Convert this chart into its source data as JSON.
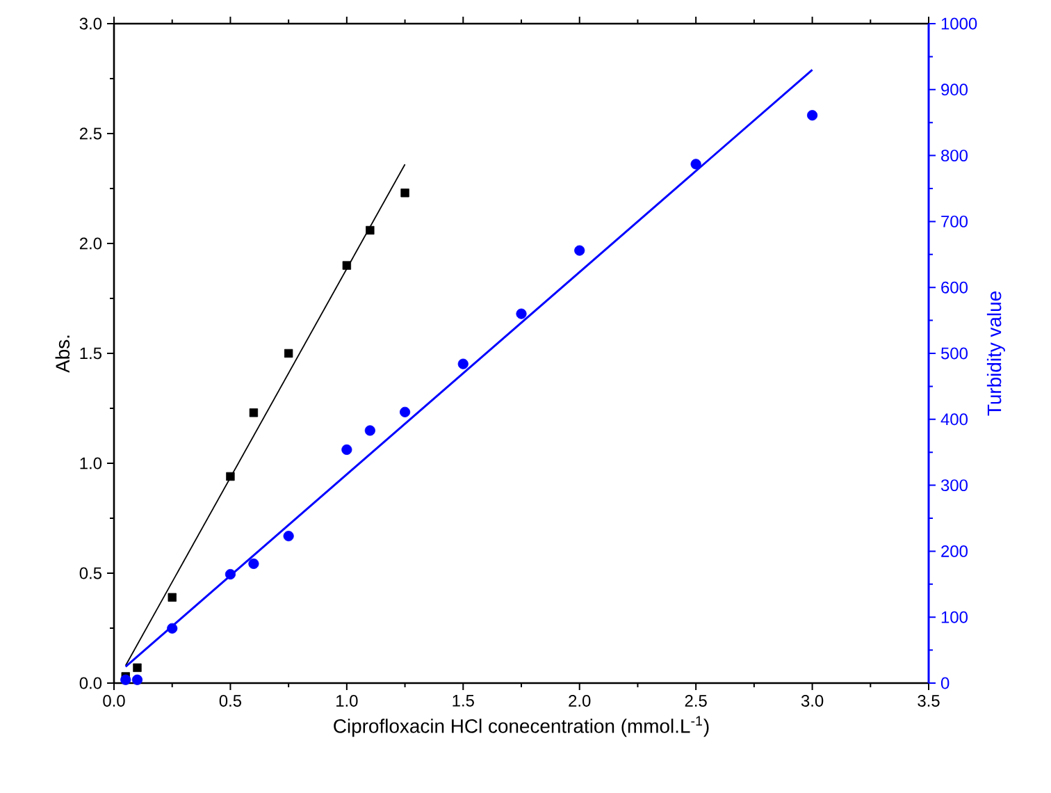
{
  "chart_data": {
    "type": "scatter",
    "xlabel": "Ciprofloxacin HCl conecentration (mmol.L$^{-1}$)",
    "ylabel": "Abs.",
    "y2label": "Turbidity value",
    "xlim": [
      0,
      3.5
    ],
    "xticks": [
      {
        "value": 0,
        "label": "0.0"
      },
      {
        "value": 0.25,
        "label": null
      },
      {
        "value": 0.5,
        "label": "0.5"
      },
      {
        "value": 0.75,
        "label": null
      },
      {
        "value": 1,
        "label": "1.0"
      },
      {
        "value": 1.25,
        "label": null
      },
      {
        "value": 1.5,
        "label": "1.5"
      },
      {
        "value": 1.75,
        "label": null
      },
      {
        "value": 2,
        "label": "2.0"
      },
      {
        "value": 2.25,
        "label": null
      },
      {
        "value": 2.5,
        "label": "2.5"
      },
      {
        "value": 2.75,
        "label": null
      },
      {
        "value": 3,
        "label": "3.0"
      },
      {
        "value": 3.25,
        "label": null
      },
      {
        "value": 3.5,
        "label": "3.5"
      }
    ],
    "ylim": [
      0,
      3
    ],
    "yticks": [
      {
        "value": 0,
        "label": "0.0"
      },
      {
        "value": 0.25,
        "label": null
      },
      {
        "value": 0.5,
        "label": "0.5"
      },
      {
        "value": 0.75,
        "label": null
      },
      {
        "value": 1,
        "label": "1.0"
      },
      {
        "value": 1.25,
        "label": null
      },
      {
        "value": 1.5,
        "label": "1.5"
      },
      {
        "value": 1.75,
        "label": null
      },
      {
        "value": 2,
        "label": "2.0"
      },
      {
        "value": 2.25,
        "label": null
      },
      {
        "value": 2.5,
        "label": "2.5"
      },
      {
        "value": 2.75,
        "label": null
      },
      {
        "value": 3,
        "label": "3.0"
      }
    ],
    "y2lim": [
      0,
      1000
    ],
    "y2ticks": [
      0,
      {
        "value": 50,
        "label": null
      },
      100,
      {
        "value": 150,
        "label": null
      },
      200,
      {
        "value": 250,
        "label": null
      },
      300,
      {
        "value": 350,
        "label": null
      },
      400,
      {
        "value": 450,
        "label": null
      },
      500,
      {
        "value": 550,
        "label": null
      },
      600,
      {
        "value": 650,
        "label": null
      },
      700,
      {
        "value": 750,
        "label": null
      },
      800,
      {
        "value": 850,
        "label": null
      },
      900,
      {
        "value": 950,
        "label": null
      },
      1000
    ],
    "series": [
      {
        "marker": "square",
        "color": "#000000",
        "x": [
          0.05,
          0.1,
          0.25,
          0.5,
          0.6,
          0.75,
          1.0,
          1.1,
          1.25
        ],
        "values": [
          0.03,
          0.07,
          0.39,
          0.94,
          1.23,
          1.5,
          1.9,
          2.06,
          2.23
        ]
      },
      {
        "type": "line",
        "color": "#000000",
        "x": [
          0.05,
          1.25
        ],
        "values": [
          0.08,
          2.36
        ]
      },
      {
        "marker": "circle",
        "color": "#0000ff",
        "axis": "y2",
        "x": [
          0.05,
          0.1,
          0.25,
          0.5,
          0.6,
          0.75,
          1.0,
          1.1,
          1.25,
          1.5,
          1.75,
          2.0,
          2.5,
          3.0
        ],
        "values": [
          5,
          5,
          83,
          165,
          181,
          223,
          354,
          383,
          411,
          484,
          560,
          656,
          787,
          861
        ]
      },
      {
        "type": "line",
        "color": "#0000ff",
        "axis": "y2",
        "x": [
          0.05,
          3.0
        ],
        "values": [
          25,
          930
        ]
      }
    ]
  }
}
